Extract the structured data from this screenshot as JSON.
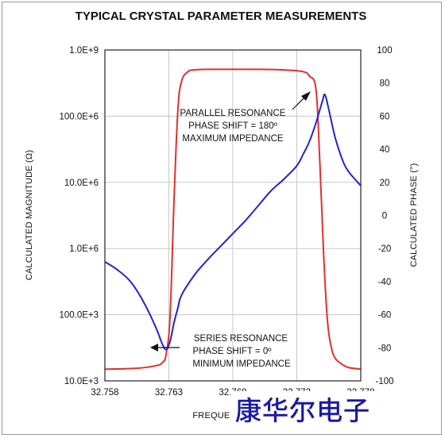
{
  "chart_data": {
    "type": "line",
    "title": "TYPICAL CRYSTAL PARAMETER MEASUREMENTS",
    "xlabel": "FREQUENCY (kHz)",
    "ylabel_left": "CALCULATED MAGNITUDE (Ω)",
    "ylabel_right": "CALCULATED PHASE (°)",
    "x_ticks": [
      "32.758",
      "32.763",
      "32.768",
      "32.773",
      "32.778"
    ],
    "xlim": [
      32.758,
      32.778
    ],
    "y_left_ticks": [
      "10.0E+3",
      "100.0E+3",
      "1.0E+6",
      "10.0E+6",
      "100.0E+6",
      "1.0E+9"
    ],
    "y_left_log_range": [
      10000,
      1000000000
    ],
    "y_right_ticks": [
      "-100",
      "-80",
      "-60",
      "-40",
      "-20",
      "0",
      "20",
      "40",
      "60",
      "80",
      "100"
    ],
    "y_right_range": [
      -100,
      100
    ],
    "grid": true,
    "series": [
      {
        "axis": "left",
        "color": "#e03030",
        "x": [
          32.758,
          32.7605,
          32.762,
          32.7625,
          32.7628,
          32.7631,
          32.7634,
          32.7637,
          32.764,
          32.7645,
          32.765,
          32.766,
          32.768,
          32.77,
          32.772,
          32.7735,
          32.774,
          32.7745,
          32.7748,
          32.7751,
          32.7754,
          32.7757,
          32.776,
          32.7765,
          32.777,
          32.778
        ],
        "y": [
          15000,
          15500,
          17000,
          19000,
          26000,
          100000,
          5000000,
          120000000,
          340000000,
          470000000,
          500000000,
          510000000,
          510000000,
          510000000,
          500000000,
          470000000,
          400000000,
          250000000,
          20000000,
          800000,
          80000,
          32000,
          22000,
          18000,
          16000,
          15000
        ]
      },
      {
        "axis": "right",
        "color": "#2424c8",
        "x": [
          32.758,
          32.759,
          32.76,
          32.761,
          32.762,
          32.7625,
          32.7628,
          32.7631,
          32.7634,
          32.7637,
          32.764,
          32.765,
          32.766,
          32.767,
          32.768,
          32.769,
          32.77,
          32.771,
          32.772,
          32.773,
          32.7735,
          32.774,
          32.7745,
          32.775,
          32.7752,
          32.7755,
          32.776,
          32.7765,
          32.777,
          32.778
        ],
        "y": [
          -28,
          -33,
          -40,
          -52,
          -68,
          -78,
          -81,
          -76,
          -65,
          -56,
          -48,
          -36,
          -27,
          -19,
          -11,
          -3,
          6,
          15,
          22,
          30,
          37,
          45,
          56,
          69,
          73,
          64,
          47,
          35,
          27,
          18
        ]
      }
    ],
    "annotations": [
      {
        "lines": [
          "PARALLEL RESONANCE",
          "PHASE SHIFT = 180º",
          "MAXIMUM IMPEDANCE"
        ]
      },
      {
        "lines": [
          "SERIES RESONANCE",
          "PHASE SHIFT = 0º",
          "MINIMUM IMPEDANCE"
        ]
      }
    ]
  },
  "watermark": {
    "text": "康华尔电子",
    "color": "#1a1aa0"
  }
}
